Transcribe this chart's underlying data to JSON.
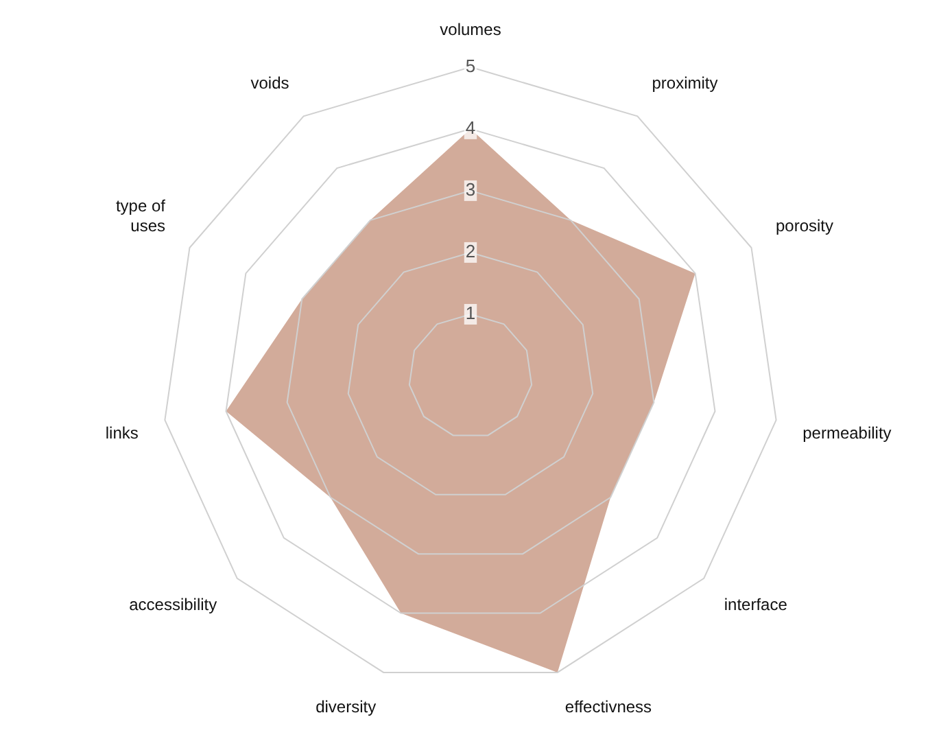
{
  "chart_data": {
    "type": "radar",
    "categories": [
      "volumes",
      "proximity",
      "porosity",
      "permeability",
      "interface",
      "effectivness",
      "diversity",
      "accessibility",
      "links",
      "type of uses",
      "voids"
    ],
    "series": [
      {
        "color": "#d2ab9a",
        "values": [
          4,
          3,
          4,
          3,
          3,
          5,
          4,
          3,
          4,
          3,
          3
        ]
      }
    ],
    "ylim": [
      0,
      5
    ],
    "yticks": [
      1,
      2,
      3,
      4,
      5
    ],
    "grid": true,
    "legend": false
  }
}
